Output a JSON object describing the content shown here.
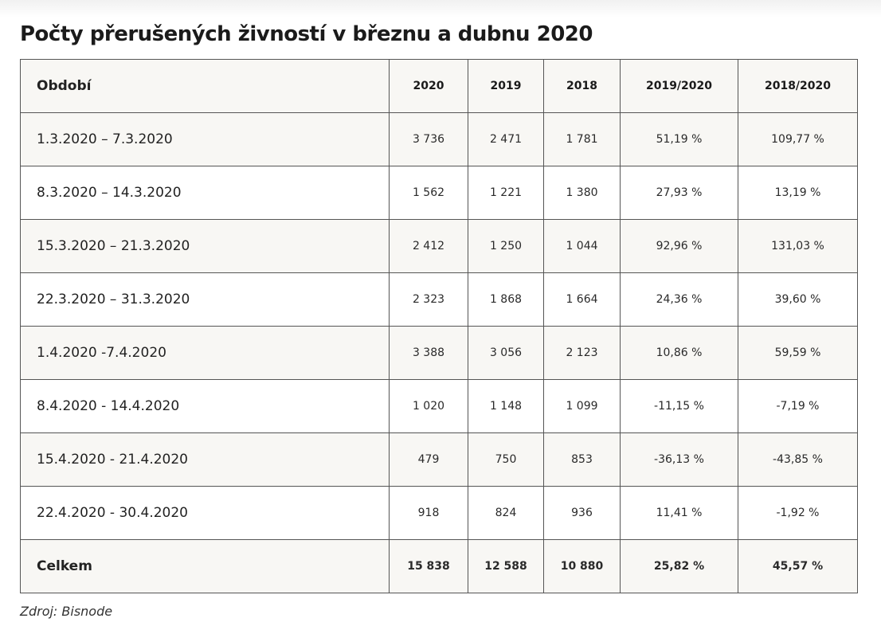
{
  "title": "Počty přerušených živností v březnu a dubnu 2020",
  "table": {
    "headers": [
      "Období",
      "2020",
      "2019",
      "2018",
      "2019/2020",
      "2018/2020"
    ],
    "rows": [
      [
        "1.3.2020 – 7.3.2020",
        "3 736",
        "2 471",
        "1 781",
        "51,19 %",
        "109,77 %"
      ],
      [
        "8.3.2020 – 14.3.2020",
        "1 562",
        "1 221",
        "1 380",
        "27,93 %",
        "13,19 %"
      ],
      [
        "15.3.2020 – 21.3.2020",
        "2 412",
        "1 250",
        "1 044",
        "92,96 %",
        "131,03 %"
      ],
      [
        "22.3.2020 – 31.3.2020",
        "2 323",
        "1 868",
        "1 664",
        "24,36 %",
        "39,60 %"
      ],
      [
        "1.4.2020 -7.4.2020",
        "3 388",
        "3 056",
        "2 123",
        "10,86 %",
        "59,59 %"
      ],
      [
        "8.4.2020 - 14.4.2020",
        "1 020",
        "1 148",
        "1 099",
        "-11,15 %",
        "-7,19 %"
      ],
      [
        "15.4.2020 - 21.4.2020",
        "479",
        "750",
        "853",
        "-36,13 %",
        "-43,85 %"
      ],
      [
        "22.4.2020 - 30.4.2020",
        "918",
        "824",
        "936",
        "11,41 %",
        "-1,92 %"
      ]
    ],
    "total": [
      "Celkem",
      "15 838",
      "12 588",
      "10 880",
      "25,82 %",
      "45,57 %"
    ]
  },
  "source": "Zdroj: Bisnode"
}
